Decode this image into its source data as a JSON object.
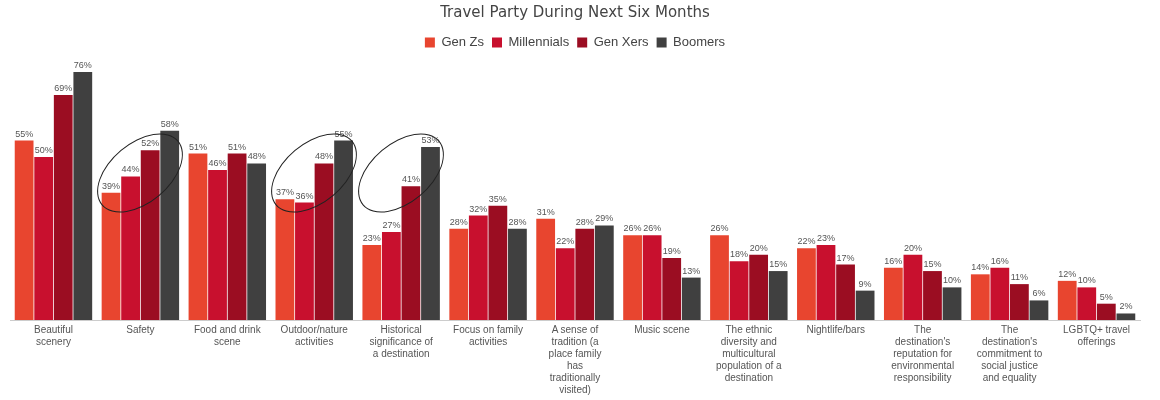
{
  "chart_data": {
    "type": "bar",
    "title": "Travel Party During Next Six Months",
    "categories": [
      "Beautiful scenery",
      "Safety",
      "Food and drink scene",
      "Outdoor/nature activities",
      "Historical significance of a destination",
      "Focus on family activities",
      "A sense of tradition (a place family has traditionally visited)",
      "Music scene",
      "The ethnic diversity and multicultural population of a destination",
      "Nightlife/bars",
      "The destination's reputation for environmental responsibility",
      "The destination's commitment to social justice and equality",
      "LGBTQ+ travel offerings"
    ],
    "series": [
      {
        "name": "Gen Zs",
        "color": "#e8452f",
        "values": [
          55,
          39,
          51,
          37,
          23,
          28,
          31,
          26,
          26,
          22,
          16,
          14,
          12
        ],
        "value_labels": [
          "55%",
          "39%",
          "51%",
          "37%",
          "23%",
          "28%",
          "31%",
          "26%",
          "26%",
          "22%",
          "16%",
          "14%",
          "12%"
        ]
      },
      {
        "name": "Millennials",
        "color": "#c8102e",
        "values": [
          50,
          44,
          46,
          36,
          27,
          32,
          22,
          26,
          18,
          23,
          20,
          16,
          10
        ],
        "value_labels": [
          "50%",
          "44%",
          "46%",
          "36%",
          "27%",
          "32%",
          "22%",
          "26%",
          "18%",
          "23%",
          "20%",
          "16%",
          "10%"
        ]
      },
      {
        "name": "Gen Xers",
        "color": "#9b0d22",
        "values": [
          69,
          52,
          51,
          48,
          41,
          35,
          28,
          19,
          20,
          17,
          15,
          11,
          5
        ],
        "value_labels": [
          "69%",
          "52%",
          "51%",
          "48%",
          "41%",
          "35%",
          "28%",
          "19%",
          "20%",
          "17%",
          "15%",
          "11%",
          "5%"
        ]
      },
      {
        "name": "Boomers",
        "color": "#404040",
        "values": [
          76,
          58,
          48,
          55,
          53,
          28,
          29,
          13,
          15,
          9,
          10,
          6,
          2
        ],
        "value_labels": [
          "76%",
          "58%",
          "48%",
          "55%",
          "53%",
          "28%",
          "29%",
          "13%",
          "15%",
          "9%",
          "10%",
          "6%",
          "2%"
        ]
      }
    ],
    "tick_labels": "x",
    "grid": false,
    "legend": "top"
  }
}
